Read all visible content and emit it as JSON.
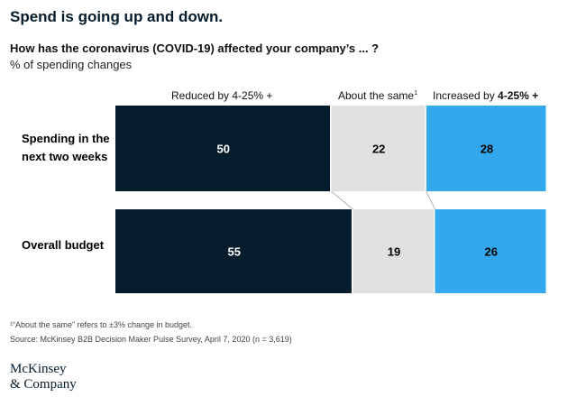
{
  "header": {
    "title": "Spend is going up and down.",
    "question": "How has the coronavirus (COVID-19) affected your company’s ... ?",
    "subtitle": "% of spending changes"
  },
  "legend": {
    "reduced": "Reduced by 4-25% +",
    "same": "About the same",
    "same_sup": "1",
    "increased_prefix": "Increased by ",
    "increased_emph": "4-25% +"
  },
  "rows": [
    {
      "label_line1": "Spending in the",
      "label_line2": "next two weeks"
    },
    {
      "label_line1": "Overall budget",
      "label_line2": ""
    }
  ],
  "footnotes": {
    "note1": "¹“About the same” refers to ±3% change in budget.",
    "source": "Source: McKinsey B2B Decision Maker Pulse Survey, April 7, 2020 (n = 3,619)"
  },
  "logo": {
    "line1": "McKinsey",
    "line2": "& Company"
  },
  "chart_data": {
    "type": "bar",
    "orientation": "horizontal",
    "stacked": true,
    "categories": [
      "Spending in the next two weeks",
      "Overall budget"
    ],
    "series": [
      {
        "name": "Reduced by 4-25% +",
        "values": [
          50,
          55
        ],
        "color": "#051c2c"
      },
      {
        "name": "About the same",
        "values": [
          22,
          19
        ],
        "color": "#e0e0e0"
      },
      {
        "name": "Increased by 4-25% +",
        "values": [
          28,
          26
        ],
        "color": "#33a8ec"
      }
    ],
    "title": "Spend is going up and down.",
    "subtitle": "% of spending changes",
    "xlim": [
      0,
      100
    ],
    "grid": false,
    "legend_position": "top"
  }
}
